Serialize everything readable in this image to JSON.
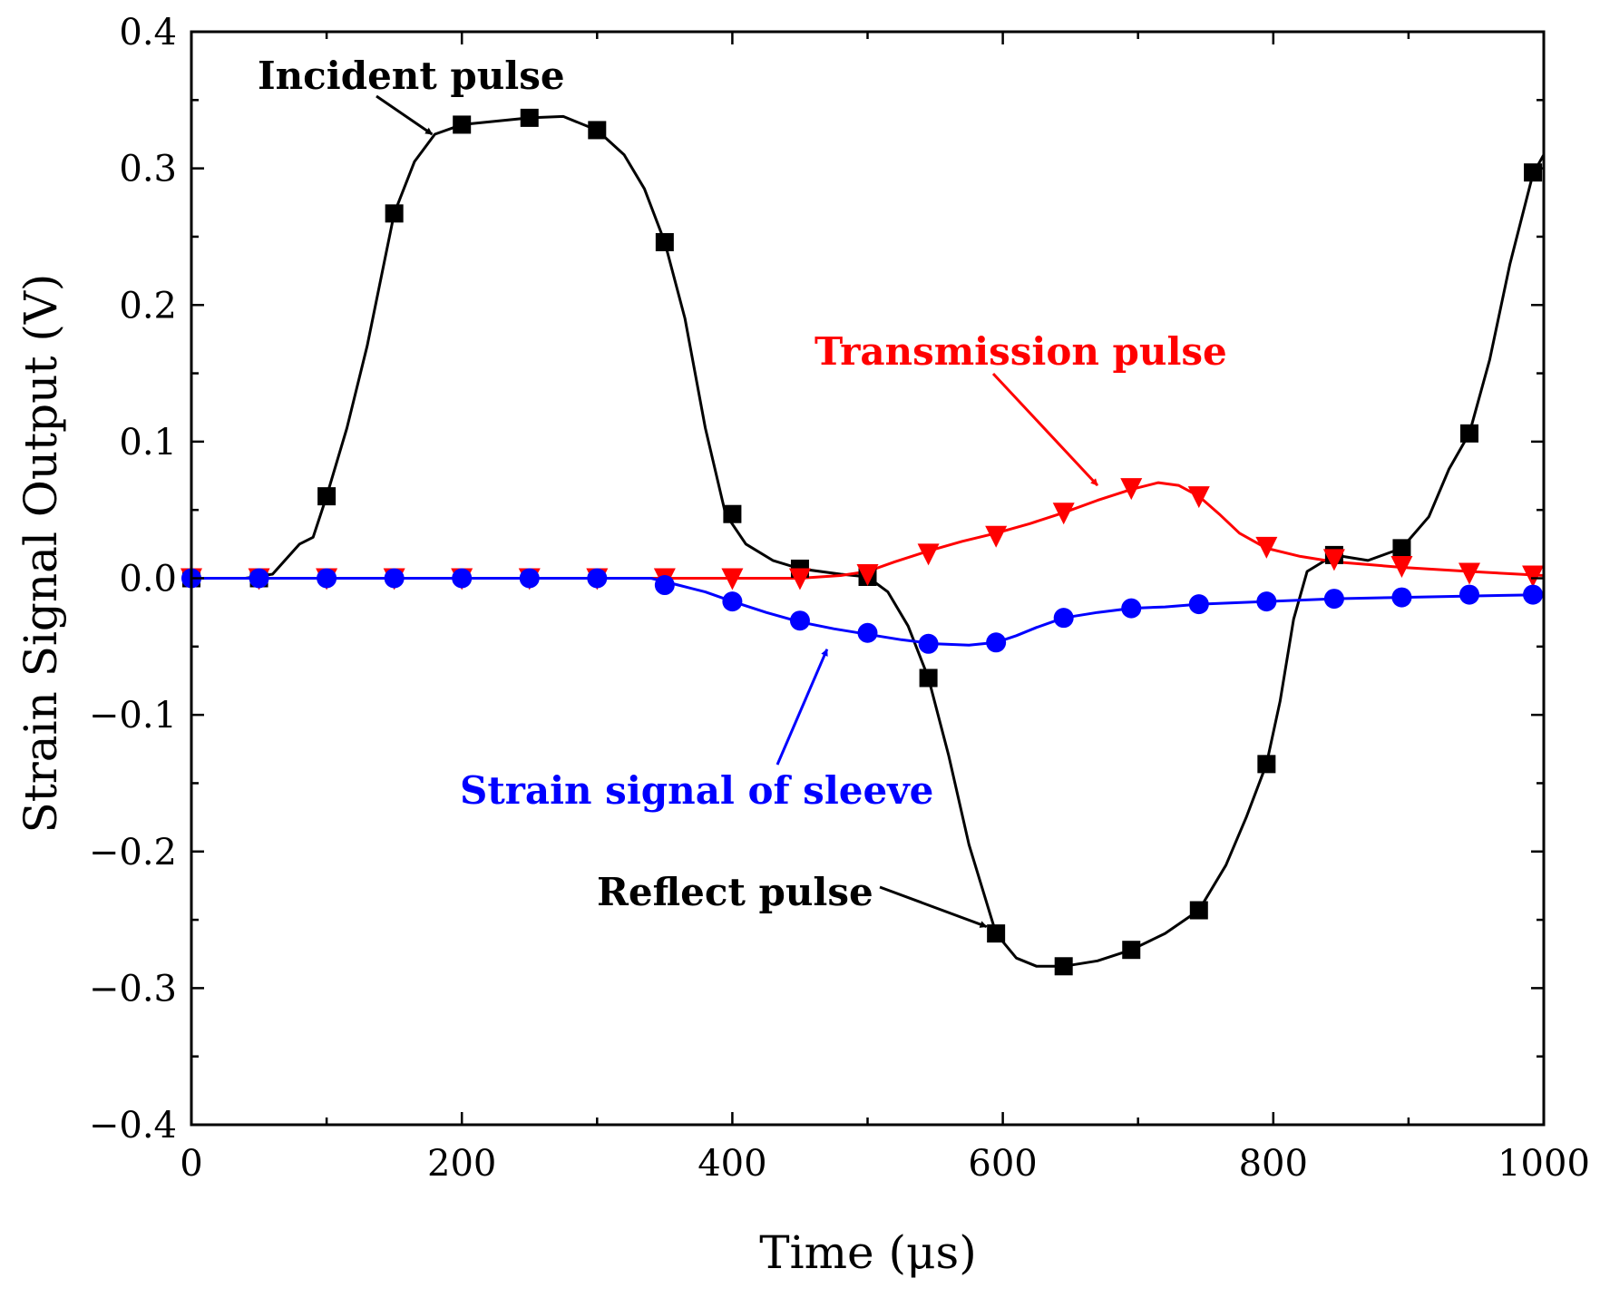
{
  "chart_data": {
    "type": "line",
    "title": "",
    "xlabel": "Time (μs)",
    "ylabel": "Strain Signal Output (V)",
    "xlim": [
      0,
      1000
    ],
    "ylim": [
      -0.4,
      0.4
    ],
    "x_ticks": [
      0,
      200,
      400,
      600,
      800,
      1000
    ],
    "x_tick_labels": [
      "0",
      "200",
      "400",
      "600",
      "800",
      "1000"
    ],
    "y_ticks": [
      -0.4,
      -0.3,
      -0.2,
      -0.1,
      0.0,
      0.1,
      0.2,
      0.3,
      0.4
    ],
    "y_tick_labels": [
      "−0.4",
      "−0.3",
      "−0.2",
      "−0.1",
      "0.0",
      "0.1",
      "0.2",
      "0.3",
      "0.4"
    ],
    "grid": false,
    "series": [
      {
        "name": "Incident / Reflect pulse",
        "color": "#000000",
        "marker": "square",
        "curve": [
          [
            0,
            0
          ],
          [
            40,
            0
          ],
          [
            60,
            0.003
          ],
          [
            80,
            0.025
          ],
          [
            90,
            0.03
          ],
          [
            100,
            0.06
          ],
          [
            115,
            0.11
          ],
          [
            130,
            0.17
          ],
          [
            150,
            0.267
          ],
          [
            165,
            0.305
          ],
          [
            180,
            0.325
          ],
          [
            200,
            0.332
          ],
          [
            250,
            0.337
          ],
          [
            275,
            0.338
          ],
          [
            300,
            0.328
          ],
          [
            320,
            0.31
          ],
          [
            335,
            0.285
          ],
          [
            350,
            0.246
          ],
          [
            365,
            0.19
          ],
          [
            380,
            0.11
          ],
          [
            395,
            0.047
          ],
          [
            410,
            0.025
          ],
          [
            430,
            0.013
          ],
          [
            450,
            0.007
          ],
          [
            480,
            0.003
          ],
          [
            500,
            0.001
          ],
          [
            515,
            -0.01
          ],
          [
            530,
            -0.035
          ],
          [
            545,
            -0.073
          ],
          [
            560,
            -0.13
          ],
          [
            575,
            -0.195
          ],
          [
            595,
            -0.26
          ],
          [
            610,
            -0.278
          ],
          [
            625,
            -0.284
          ],
          [
            645,
            -0.284
          ],
          [
            670,
            -0.28
          ],
          [
            695,
            -0.272
          ],
          [
            720,
            -0.26
          ],
          [
            745,
            -0.243
          ],
          [
            765,
            -0.21
          ],
          [
            780,
            -0.175
          ],
          [
            795,
            -0.136
          ],
          [
            805,
            -0.09
          ],
          [
            815,
            -0.03
          ],
          [
            825,
            0.005
          ],
          [
            845,
            0.017
          ],
          [
            870,
            0.013
          ],
          [
            895,
            0.022
          ],
          [
            915,
            0.045
          ],
          [
            930,
            0.08
          ],
          [
            945,
            0.106
          ],
          [
            960,
            0.16
          ],
          [
            975,
            0.23
          ],
          [
            992,
            0.296
          ],
          [
            1000,
            0.31
          ]
        ],
        "markers": [
          [
            0,
            0
          ],
          [
            50,
            0
          ],
          [
            100,
            0.06
          ],
          [
            150,
            0.267
          ],
          [
            200,
            0.332
          ],
          [
            250,
            0.337
          ],
          [
            300,
            0.328
          ],
          [
            350,
            0.246
          ],
          [
            400,
            0.047
          ],
          [
            450,
            0.007
          ],
          [
            500,
            0.001
          ],
          [
            545,
            -0.073
          ],
          [
            595,
            -0.26
          ],
          [
            645,
            -0.284
          ],
          [
            695,
            -0.272
          ],
          [
            745,
            -0.243
          ],
          [
            795,
            -0.136
          ],
          [
            845,
            0.017
          ],
          [
            895,
            0.022
          ],
          [
            945,
            0.106
          ],
          [
            992,
            0.297
          ]
        ]
      },
      {
        "name": "Transmission pulse",
        "color": "#ff0000",
        "marker": "triangle-down",
        "curve": [
          [
            0,
            0
          ],
          [
            300,
            0
          ],
          [
            400,
            0
          ],
          [
            450,
            0
          ],
          [
            480,
            0.002
          ],
          [
            500,
            0.005
          ],
          [
            520,
            0.012
          ],
          [
            545,
            0.02
          ],
          [
            570,
            0.027
          ],
          [
            595,
            0.033
          ],
          [
            620,
            0.04
          ],
          [
            645,
            0.048
          ],
          [
            670,
            0.057
          ],
          [
            695,
            0.065
          ],
          [
            715,
            0.07
          ],
          [
            730,
            0.068
          ],
          [
            745,
            0.06
          ],
          [
            760,
            0.047
          ],
          [
            775,
            0.033
          ],
          [
            795,
            0.022
          ],
          [
            820,
            0.016
          ],
          [
            845,
            0.012
          ],
          [
            870,
            0.01
          ],
          [
            895,
            0.008
          ],
          [
            945,
            0.005
          ],
          [
            1000,
            0.002
          ]
        ],
        "markers": [
          [
            0,
            0
          ],
          [
            50,
            0
          ],
          [
            100,
            0
          ],
          [
            150,
            0
          ],
          [
            200,
            0
          ],
          [
            250,
            0
          ],
          [
            300,
            0
          ],
          [
            350,
            0
          ],
          [
            400,
            0
          ],
          [
            450,
            0
          ],
          [
            500,
            0.003
          ],
          [
            545,
            0.018
          ],
          [
            595,
            0.031
          ],
          [
            645,
            0.048
          ],
          [
            695,
            0.066
          ],
          [
            745,
            0.06
          ],
          [
            795,
            0.023
          ],
          [
            845,
            0.014
          ],
          [
            895,
            0.009
          ],
          [
            945,
            0.004
          ],
          [
            992,
            0.002
          ]
        ]
      },
      {
        "name": "Strain signal of sleeve",
        "color": "#0000ff",
        "marker": "circle",
        "curve": [
          [
            0,
            0
          ],
          [
            300,
            0
          ],
          [
            340,
            0
          ],
          [
            360,
            -0.005
          ],
          [
            380,
            -0.01
          ],
          [
            400,
            -0.017
          ],
          [
            425,
            -0.025
          ],
          [
            450,
            -0.032
          ],
          [
            475,
            -0.037
          ],
          [
            500,
            -0.041
          ],
          [
            525,
            -0.045
          ],
          [
            550,
            -0.048
          ],
          [
            575,
            -0.049
          ],
          [
            595,
            -0.047
          ],
          [
            610,
            -0.042
          ],
          [
            625,
            -0.036
          ],
          [
            645,
            -0.029
          ],
          [
            670,
            -0.025
          ],
          [
            695,
            -0.022
          ],
          [
            720,
            -0.021
          ],
          [
            745,
            -0.019
          ],
          [
            795,
            -0.017
          ],
          [
            845,
            -0.015
          ],
          [
            895,
            -0.014
          ],
          [
            945,
            -0.013
          ],
          [
            1000,
            -0.012
          ]
        ],
        "markers": [
          [
            0,
            0
          ],
          [
            50,
            0
          ],
          [
            100,
            0
          ],
          [
            150,
            0
          ],
          [
            200,
            0
          ],
          [
            250,
            0
          ],
          [
            300,
            0
          ],
          [
            350,
            -0.005
          ],
          [
            400,
            -0.017
          ],
          [
            450,
            -0.031
          ],
          [
            500,
            -0.04
          ],
          [
            545,
            -0.048
          ],
          [
            595,
            -0.047
          ],
          [
            645,
            -0.029
          ],
          [
            695,
            -0.022
          ],
          [
            745,
            -0.019
          ],
          [
            795,
            -0.017
          ],
          [
            845,
            -0.015
          ],
          [
            895,
            -0.014
          ],
          [
            945,
            -0.012
          ],
          [
            992,
            -0.012
          ]
        ]
      }
    ],
    "annotations": [
      {
        "text": "Incident pulse",
        "color": "#000000",
        "target": [
          178,
          0.325
        ]
      },
      {
        "text": "Transmission pulse",
        "color": "#ff0000",
        "target": [
          670,
          0.068
        ]
      },
      {
        "text": "Strain signal of sleeve",
        "color": "#0000ff",
        "target": [
          470,
          -0.052
        ]
      },
      {
        "text": "Reflect pulse",
        "color": "#000000",
        "target": [
          588,
          -0.255
        ]
      }
    ]
  }
}
